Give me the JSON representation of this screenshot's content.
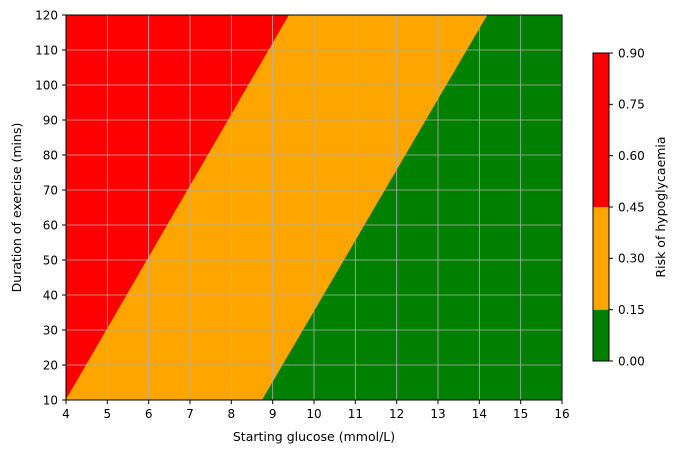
{
  "chart_data": {
    "type": "heatmap",
    "title": "",
    "xlabel": "Starting glucose (mmol/L)",
    "ylabel": "Duration of exercise (mins)",
    "xlim": [
      4,
      16
    ],
    "ylim": [
      10,
      120
    ],
    "x_ticks": [
      4,
      5,
      6,
      7,
      8,
      9,
      10,
      11,
      12,
      13,
      14,
      15,
      16
    ],
    "y_ticks": [
      10,
      20,
      30,
      40,
      50,
      60,
      70,
      80,
      90,
      100,
      110,
      120
    ],
    "grid": true,
    "grid_color": "#b0b0b0",
    "regions": [
      {
        "level": "high",
        "range": [
          0.45,
          0.9
        ],
        "color": "#ff0000",
        "boundary_upper": null,
        "boundary_lower": [
          [
            4.0,
            10
          ],
          [
            9.4,
            120
          ]
        ]
      },
      {
        "level": "medium",
        "range": [
          0.15,
          0.45
        ],
        "color": "#ffa500",
        "boundary_upper": [
          [
            4.0,
            10
          ],
          [
            9.4,
            120
          ]
        ],
        "boundary_lower": [
          [
            8.75,
            10
          ],
          [
            14.2,
            120
          ]
        ]
      },
      {
        "level": "low",
        "range": [
          0.0,
          0.15
        ],
        "color": "#008000",
        "boundary_upper": [
          [
            8.75,
            10
          ],
          [
            14.2,
            120
          ]
        ],
        "boundary_lower": null
      }
    ],
    "colorbar": {
      "label": "Risk of hypoglycaemia",
      "range": [
        0.0,
        0.9
      ],
      "ticks": [
        "0.00",
        "0.15",
        "0.30",
        "0.45",
        "0.60",
        "0.75",
        "0.90"
      ],
      "bands": [
        {
          "from": 0.0,
          "to": 0.15,
          "color": "#008000"
        },
        {
          "from": 0.15,
          "to": 0.45,
          "color": "#ffa500"
        },
        {
          "from": 0.45,
          "to": 0.9,
          "color": "#ff0000"
        }
      ]
    }
  }
}
